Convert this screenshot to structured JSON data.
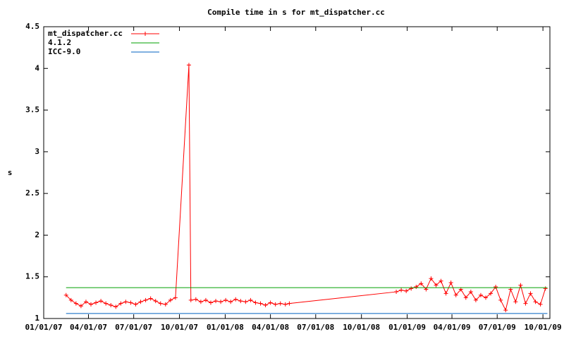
{
  "chart_data": {
    "type": "line",
    "title": "Compile time in s for mt_dispatcher.cc",
    "y_label": "s",
    "xlim": [
      "2007-01-01",
      "2009-10-15"
    ],
    "xticks": [
      {
        "value": "2007-01-01",
        "label": "01/01/07"
      },
      {
        "value": "2007-04-01",
        "label": "04/01/07"
      },
      {
        "value": "2007-07-01",
        "label": "07/01/07"
      },
      {
        "value": "2007-10-01",
        "label": "10/01/07"
      },
      {
        "value": "2008-01-01",
        "label": "01/01/08"
      },
      {
        "value": "2008-04-01",
        "label": "04/01/08"
      },
      {
        "value": "2008-07-01",
        "label": "07/01/08"
      },
      {
        "value": "2008-10-01",
        "label": "10/01/08"
      },
      {
        "value": "2009-01-01",
        "label": "01/01/09"
      },
      {
        "value": "2009-04-01",
        "label": "04/01/09"
      },
      {
        "value": "2009-07-01",
        "label": "07/01/09"
      },
      {
        "value": "2009-10-01",
        "label": "10/01/09"
      }
    ],
    "ylim": [
      1,
      4.5
    ],
    "yticks": [
      1,
      1.5,
      2,
      2.5,
      3,
      3.5,
      4,
      4.5
    ],
    "grid": false,
    "legend": "top-left",
    "series": [
      {
        "name": "mt_dispatcher.cc",
        "color": "#ff0000",
        "marker": "+",
        "x": [
          "2007-02-15",
          "2007-02-25",
          "2007-03-07",
          "2007-03-17",
          "2007-03-27",
          "2007-04-06",
          "2007-04-16",
          "2007-04-26",
          "2007-05-06",
          "2007-05-16",
          "2007-05-26",
          "2007-06-05",
          "2007-06-15",
          "2007-06-25",
          "2007-07-05",
          "2007-07-15",
          "2007-07-25",
          "2007-08-04",
          "2007-08-14",
          "2007-08-24",
          "2007-09-03",
          "2007-09-13",
          "2007-09-23",
          "2007-10-20",
          "2007-10-24",
          "2007-11-03",
          "2007-11-13",
          "2007-11-23",
          "2007-12-03",
          "2007-12-13",
          "2007-12-23",
          "2008-01-02",
          "2008-01-12",
          "2008-01-22",
          "2008-02-01",
          "2008-02-11",
          "2008-02-21",
          "2008-03-02",
          "2008-03-12",
          "2008-03-22",
          "2008-04-01",
          "2008-04-11",
          "2008-04-21",
          "2008-05-01",
          "2008-05-09",
          "2008-12-10",
          "2008-12-20",
          "2008-12-30",
          "2009-01-09",
          "2009-01-19",
          "2009-01-29",
          "2009-02-08",
          "2009-02-18",
          "2009-02-28",
          "2009-03-10",
          "2009-03-20",
          "2009-03-30",
          "2009-04-09",
          "2009-04-19",
          "2009-04-29",
          "2009-05-09",
          "2009-05-19",
          "2009-05-29",
          "2009-06-08",
          "2009-06-18",
          "2009-06-28",
          "2009-07-08",
          "2009-07-18",
          "2009-07-28",
          "2009-08-07",
          "2009-08-17",
          "2009-08-27",
          "2009-09-06",
          "2009-09-16",
          "2009-09-26",
          "2009-10-06"
        ],
        "values": [
          1.28,
          1.22,
          1.18,
          1.15,
          1.2,
          1.17,
          1.19,
          1.21,
          1.18,
          1.16,
          1.14,
          1.18,
          1.2,
          1.19,
          1.17,
          1.2,
          1.22,
          1.24,
          1.21,
          1.18,
          1.17,
          1.22,
          1.25,
          4.04,
          1.22,
          1.23,
          1.2,
          1.22,
          1.19,
          1.21,
          1.2,
          1.22,
          1.2,
          1.23,
          1.21,
          1.2,
          1.22,
          1.19,
          1.18,
          1.16,
          1.19,
          1.17,
          1.18,
          1.17,
          1.18,
          1.32,
          1.34,
          1.33,
          1.36,
          1.38,
          1.42,
          1.35,
          1.48,
          1.4,
          1.45,
          1.3,
          1.43,
          1.28,
          1.35,
          1.25,
          1.32,
          1.22,
          1.28,
          1.25,
          1.3,
          1.38,
          1.22,
          1.1,
          1.35,
          1.2,
          1.4,
          1.18,
          1.3,
          1.2,
          1.17,
          1.36
        ]
      },
      {
        "name": "4.1.2",
        "color": "#00a000",
        "x": [
          "2007-02-15",
          "2009-10-10"
        ],
        "values": [
          1.37,
          1.37
        ]
      },
      {
        "name": "ICC-9.0",
        "color": "#0060c0",
        "x": [
          "2007-02-15",
          "2009-10-10"
        ],
        "values": [
          1.06,
          1.06
        ]
      }
    ]
  }
}
